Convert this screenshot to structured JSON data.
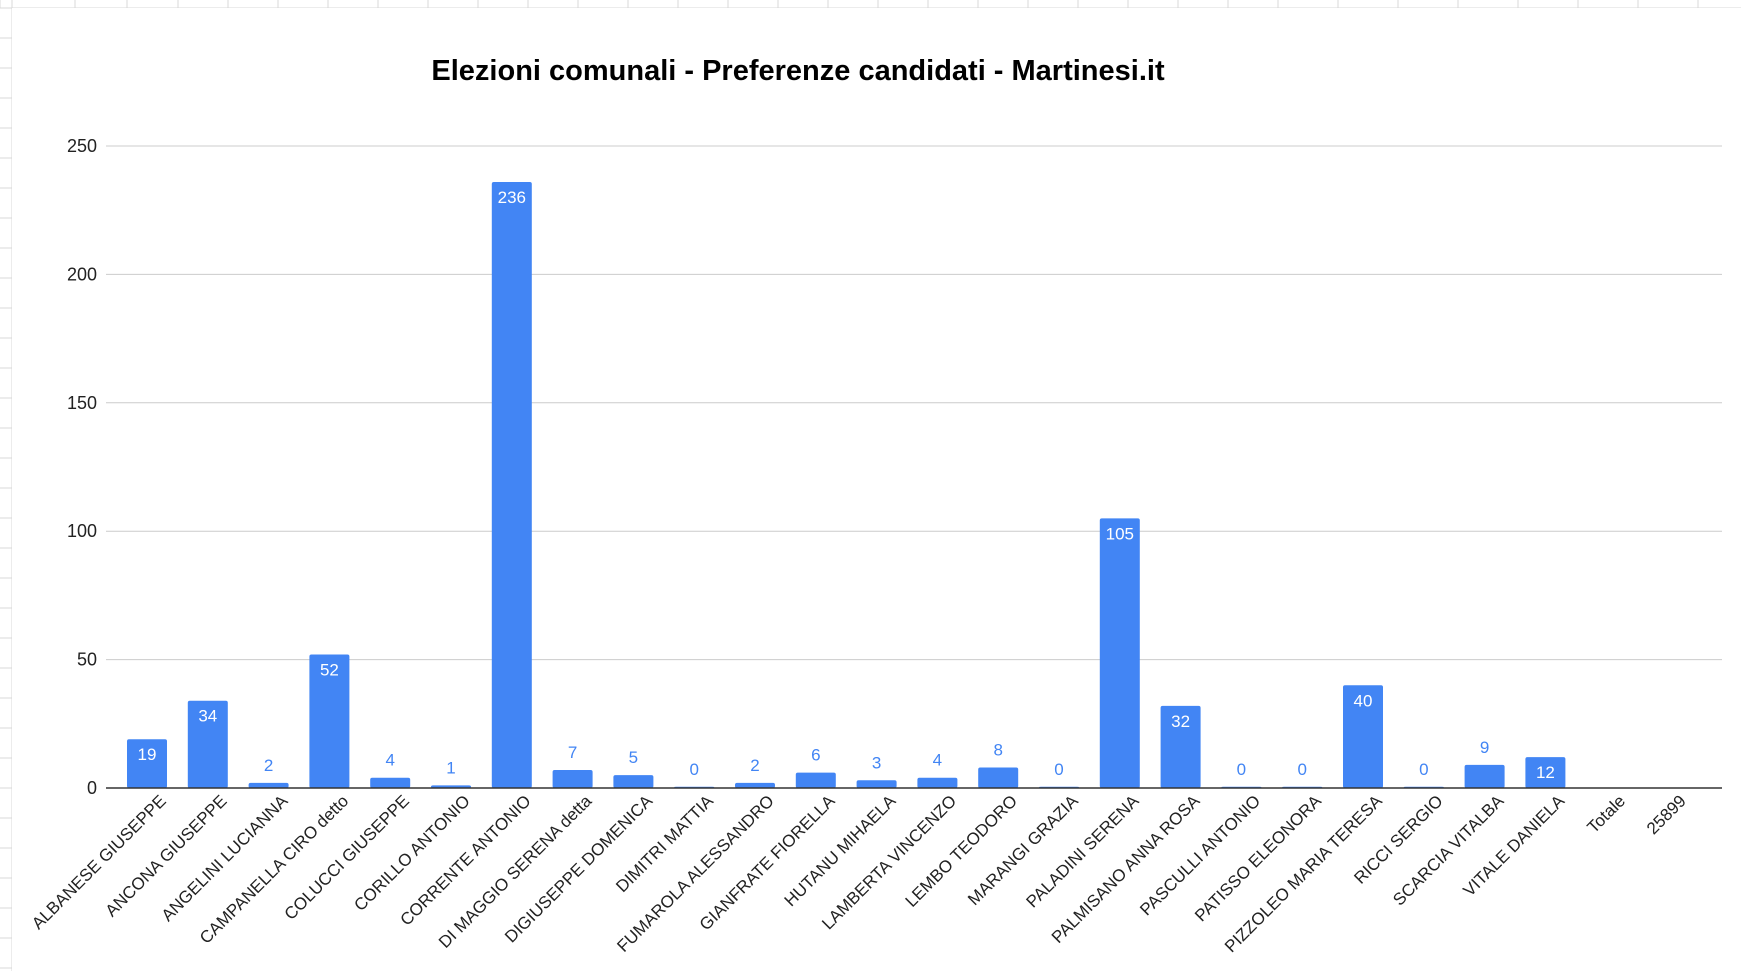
{
  "chart_data": {
    "type": "bar",
    "title": "Elezioni comunali - Preferenze candidati - Martinesi.it",
    "xlabel": "",
    "ylabel": "",
    "ylim": [
      0,
      250
    ],
    "yticks": [
      0,
      50,
      100,
      150,
      200,
      250
    ],
    "grid": true,
    "legend": "none",
    "bar_color": "#4285f4",
    "categories": [
      "ALBANESE GIUSEPPE",
      "ANCONA GIUSEPPE",
      "ANGELINI LUCIANNA",
      "CAMPANELLA CIRO detto",
      "COLUCCI GIUSEPPE",
      "CORILLO ANTONIO",
      "CORRENTE ANTONIO",
      "DI MAGGIO SERENA detta",
      "DIGIUSEPPE DOMENICA",
      "DIMITRI MATTIA",
      "FUMAROLA ALESSANDRO",
      "GIANFRATE FIORELLA",
      "HUTANU MIHAELA",
      "LAMBERTA VINCENZO",
      "LEMBO TEODORO",
      "MARANGI GRAZIA",
      "PALADINI SERENA",
      "PALMISANO ANNA ROSA",
      "PASCULLI ANTONIO",
      "PATISSO ELEONORA",
      "PIZZOLEO MARIA TERESA",
      "RICCI SERGIO",
      "SCARCIA VITALBA",
      "VITALE DANIELA",
      "Totale",
      "25899"
    ],
    "values": [
      19,
      34,
      2,
      52,
      4,
      1,
      236,
      7,
      5,
      0,
      2,
      6,
      3,
      4,
      8,
      0,
      105,
      32,
      0,
      0,
      40,
      0,
      9,
      12,
      null,
      null
    ],
    "data_labels": [
      "19",
      "34",
      "2",
      "52",
      "4",
      "1",
      "236",
      "7",
      "5",
      "0",
      "2",
      "6",
      "3",
      "4",
      "8",
      "0",
      "105",
      "32",
      "0",
      "0",
      "40",
      "0",
      "9",
      "12",
      "",
      ""
    ]
  }
}
